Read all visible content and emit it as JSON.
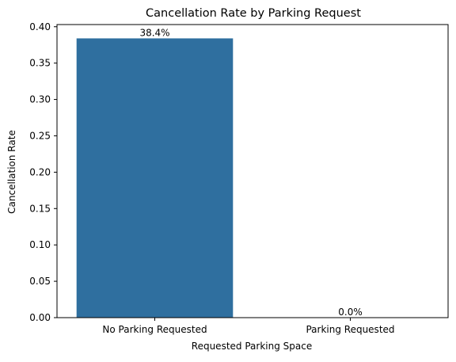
{
  "chart_data": {
    "type": "bar",
    "title": "Cancellation Rate by Parking Request",
    "xlabel": "Requested Parking Space",
    "ylabel": "Cancellation Rate",
    "categories": [
      "No Parking Requested",
      "Parking Requested"
    ],
    "values": [
      0.384,
      0.0
    ],
    "data_labels": [
      "38.4%",
      "0.0%"
    ],
    "ylim": [
      0,
      0.403
    ],
    "yticks": [
      0.0,
      0.05,
      0.1,
      0.15,
      0.2,
      0.25,
      0.3,
      0.35,
      0.4
    ],
    "ytick_labels": [
      "0.00",
      "0.05",
      "0.10",
      "0.15",
      "0.20",
      "0.25",
      "0.30",
      "0.35",
      "0.40"
    ],
    "grid": false,
    "legend": "none",
    "colors": {
      "bar": "#2f6f9f",
      "axis": "#000000",
      "background": "#ffffff"
    }
  }
}
